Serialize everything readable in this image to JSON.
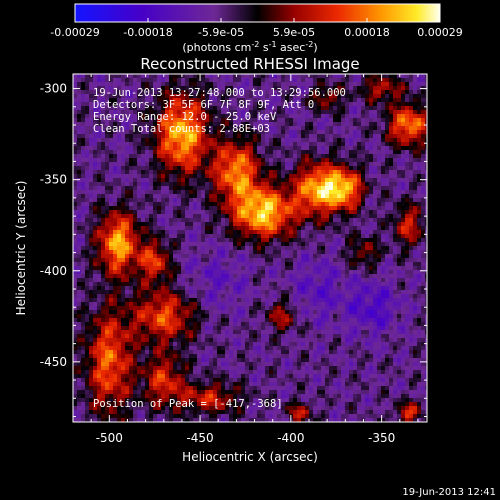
{
  "chart_data": {
    "type": "heatmap",
    "title": "Reconstructed RHESSI Image",
    "xlabel": "Heliocentric X (arcsec)",
    "ylabel": "Heliocentric Y (arcsec)",
    "xlim": [
      -520,
      -325
    ],
    "ylim": [
      -483,
      -292
    ],
    "x_ticks": [
      -500,
      -450,
      -400,
      -350
    ],
    "y_ticks": [
      -300,
      -350,
      -400,
      -450
    ],
    "x_tick_labels": [
      "-500",
      "-450",
      "-400",
      "-350"
    ],
    "y_tick_labels": [
      "-300",
      "-350",
      "-400",
      "-450"
    ],
    "colorbar": {
      "range": [
        -0.00029,
        0.00029
      ],
      "tick_labels": [
        "-0.00029",
        "-0.00018",
        "-5.9e-05",
        "5.9e-05",
        "0.00018",
        "0.00029"
      ],
      "unit_label_parts": [
        "(photons cm",
        "-2",
        " s",
        "-1",
        " asec",
        "-2",
        ")"
      ]
    },
    "annotations": {
      "time_range": "19-Jun-2013 13:27:48.000 to 13:29:56.000",
      "detectors": "Detectors: 3F 5F 6F 7F 8F 9F, Att 0",
      "energy_range": "Energy Range: 12.0 - 25.0 keV",
      "clean": "Clean    Total counts: 2.88E+03",
      "peak": "Position of Peak = [-417,-368]"
    },
    "peak": [
      -417,
      -368
    ],
    "sources": [
      {
        "x": -460,
        "y": -325,
        "amp": 1.0,
        "sx": 10,
        "sy": 15
      },
      {
        "x": -430,
        "y": -345,
        "amp": 0.85,
        "sx": 9,
        "sy": 12
      },
      {
        "x": -415,
        "y": -368,
        "amp": 1.05,
        "sx": 12,
        "sy": 10
      },
      {
        "x": -385,
        "y": -355,
        "amp": 0.95,
        "sx": 9,
        "sy": 10
      },
      {
        "x": -370,
        "y": -355,
        "amp": 0.85,
        "sx": 7,
        "sy": 8
      },
      {
        "x": -495,
        "y": -385,
        "amp": 0.95,
        "sx": 8,
        "sy": 12
      },
      {
        "x": -475,
        "y": -395,
        "amp": 0.65,
        "sx": 6,
        "sy": 8
      },
      {
        "x": -500,
        "y": -450,
        "amp": 0.75,
        "sx": 9,
        "sy": 20
      },
      {
        "x": -470,
        "y": -425,
        "amp": 0.7,
        "sx": 12,
        "sy": 10
      },
      {
        "x": -470,
        "y": -460,
        "amp": 0.6,
        "sx": 8,
        "sy": 10
      },
      {
        "x": -445,
        "y": -470,
        "amp": 0.55,
        "sx": 12,
        "sy": 6
      },
      {
        "x": -335,
        "y": -320,
        "amp": 0.85,
        "sx": 8,
        "sy": 8
      },
      {
        "x": -350,
        "y": -300,
        "amp": 0.5,
        "sx": 8,
        "sy": 5
      },
      {
        "x": -380,
        "y": -305,
        "amp": 0.45,
        "sx": 6,
        "sy": 5
      },
      {
        "x": -335,
        "y": -375,
        "amp": 0.55,
        "sx": 6,
        "sy": 8
      },
      {
        "x": -360,
        "y": -390,
        "amp": 0.4,
        "sx": 6,
        "sy": 6
      },
      {
        "x": -405,
        "y": -425,
        "amp": 0.45,
        "sx": 6,
        "sy": 6
      },
      {
        "x": -395,
        "y": -478,
        "amp": 0.5,
        "sx": 5,
        "sy": 4
      },
      {
        "x": -335,
        "y": -478,
        "amp": 0.6,
        "sx": 5,
        "sy": 4
      },
      {
        "x": -355,
        "y": -420,
        "amp": -0.35,
        "sx": 10,
        "sy": 10
      },
      {
        "x": -385,
        "y": -410,
        "amp": -0.25,
        "sx": 10,
        "sy": 12
      },
      {
        "x": -440,
        "y": -405,
        "amp": -0.2,
        "sx": 12,
        "sy": 12
      }
    ]
  },
  "footer": {
    "timestamp": "19-Jun-2013 12:41"
  }
}
